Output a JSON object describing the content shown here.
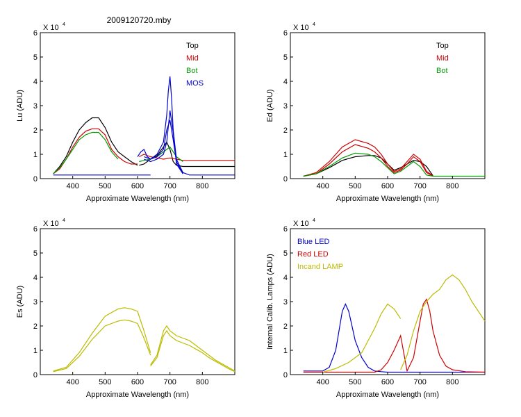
{
  "figure": {
    "title": "2009120720.mby"
  },
  "chart_data": [
    {
      "id": "lu",
      "type": "line",
      "ylabel": "Lu (ADU)",
      "xlabel": "Approximate Wavelength (nm)",
      "multiplier": "X 10",
      "exponent": "4",
      "xlim": [
        300,
        900
      ],
      "ylim": [
        0,
        6
      ],
      "xticks": [
        400,
        500,
        600,
        700,
        800
      ],
      "yticks": [
        0,
        1,
        2,
        3,
        4,
        5,
        6
      ],
      "legend": [
        {
          "label": "Top",
          "color": "#000000"
        },
        {
          "label": "Mid",
          "color": "#cc0000"
        },
        {
          "label": "Bot",
          "color": "#009900"
        },
        {
          "label": "MOS",
          "color": "#0000cc"
        }
      ],
      "series": [
        {
          "name": "Top",
          "color": "#000000",
          "x": [
            340,
            360,
            380,
            400,
            420,
            440,
            460,
            480,
            500,
            520,
            540,
            560,
            580,
            600
          ],
          "y": [
            0.2,
            0.5,
            0.9,
            1.5,
            2.0,
            2.3,
            2.5,
            2.5,
            2.1,
            1.5,
            1.1,
            0.9,
            0.7,
            0.55
          ]
        },
        {
          "name": "Top",
          "color": "#000000",
          "x": [
            605,
            620,
            640,
            660,
            680,
            690,
            700,
            710,
            720,
            740,
            800,
            900
          ],
          "y": [
            0.55,
            0.6,
            0.8,
            0.95,
            1.3,
            1.5,
            1.2,
            0.7,
            0.55,
            0.5,
            0.5,
            0.5
          ]
        },
        {
          "name": "Mid",
          "color": "#cc0000",
          "x": [
            340,
            360,
            380,
            400,
            420,
            440,
            460,
            480,
            500,
            520,
            540,
            560,
            580,
            600
          ],
          "y": [
            0.2,
            0.4,
            0.8,
            1.3,
            1.7,
            1.95,
            2.05,
            2.05,
            1.8,
            1.2,
            0.9,
            0.7,
            0.6,
            0.6
          ]
        },
        {
          "name": "Mid",
          "color": "#cc0000",
          "x": [
            605,
            620,
            640,
            660,
            680,
            700,
            720,
            740,
            800,
            900
          ],
          "y": [
            0.9,
            1.0,
            0.9,
            0.85,
            0.8,
            0.85,
            0.8,
            0.75,
            0.75,
            0.75
          ]
        },
        {
          "name": "Bot",
          "color": "#009900",
          "x": [
            340,
            360,
            380,
            400,
            420,
            440,
            460,
            480,
            500,
            520,
            540
          ],
          "y": [
            0.2,
            0.45,
            0.8,
            1.2,
            1.6,
            1.8,
            1.9,
            1.9,
            1.6,
            1.1,
            0.8
          ]
        },
        {
          "name": "Bot",
          "color": "#009900",
          "x": [
            605,
            620,
            640,
            660,
            680,
            700,
            720,
            740
          ],
          "y": [
            0.7,
            0.75,
            0.8,
            0.9,
            1.1,
            1.3,
            0.9,
            0.7
          ]
        },
        {
          "name": "MOS",
          "color": "#0000cc",
          "x": [
            340,
            600,
            640
          ],
          "y": [
            0.15,
            0.15,
            0.15
          ]
        },
        {
          "name": "MOS",
          "color": "#0000cc",
          "x": [
            600,
            610,
            620,
            630,
            640,
            660,
            680,
            690,
            695,
            700,
            705,
            710,
            720,
            740,
            760,
            800,
            900
          ],
          "y": [
            0.9,
            1.1,
            1.2,
            0.9,
            0.8,
            1.0,
            1.5,
            2.6,
            3.6,
            4.2,
            3.3,
            2.0,
            0.8,
            0.25,
            0.15,
            0.15,
            0.15
          ]
        },
        {
          "name": "MOS",
          "color": "#0000cc",
          "x": [
            620,
            640,
            660,
            680,
            690,
            700,
            710,
            720,
            740
          ],
          "y": [
            0.9,
            0.8,
            0.9,
            1.2,
            2.0,
            2.4,
            1.6,
            0.7,
            0.2
          ]
        },
        {
          "name": "MOS",
          "color": "#0000cc",
          "x": [
            620,
            640,
            660,
            680,
            690,
            700,
            710,
            720,
            740
          ],
          "y": [
            0.8,
            0.7,
            0.8,
            1.0,
            1.5,
            2.8,
            1.9,
            0.6,
            0.2
          ]
        }
      ]
    },
    {
      "id": "ed",
      "type": "line",
      "ylabel": "Ed  (ADU)",
      "xlabel": "Approximate Wavelength (nm)",
      "multiplier": "X 10",
      "exponent": "4",
      "xlim": [
        300,
        900
      ],
      "ylim": [
        0,
        6
      ],
      "xticks": [
        400,
        500,
        600,
        700,
        800
      ],
      "yticks": [
        0,
        1,
        2,
        3,
        4,
        5,
        6
      ],
      "legend": [
        {
          "label": "Top",
          "color": "#000000"
        },
        {
          "label": "Mid",
          "color": "#cc0000"
        },
        {
          "label": "Bot",
          "color": "#009900"
        }
      ],
      "series": [
        {
          "name": "Top",
          "color": "#000000",
          "x": [
            340,
            380,
            420,
            460,
            500,
            540,
            560,
            580,
            600,
            620,
            640,
            660,
            680,
            700,
            720,
            740
          ],
          "y": [
            0.1,
            0.2,
            0.45,
            0.75,
            0.9,
            0.95,
            0.95,
            0.85,
            0.6,
            0.35,
            0.45,
            0.6,
            0.75,
            0.7,
            0.5,
            0.12
          ]
        },
        {
          "name": "Mid",
          "color": "#cc0000",
          "x": [
            340,
            380,
            420,
            460,
            500,
            540,
            560,
            580,
            600,
            620,
            640,
            660,
            680,
            700,
            720,
            740
          ],
          "y": [
            0.1,
            0.25,
            0.7,
            1.3,
            1.6,
            1.45,
            1.3,
            1.0,
            0.6,
            0.3,
            0.4,
            0.7,
            1.0,
            0.8,
            0.3,
            0.12
          ]
        },
        {
          "name": "Mid",
          "color": "#cc0000",
          "x": [
            340,
            380,
            420,
            460,
            500,
            540,
            560,
            580,
            600,
            620,
            640,
            660,
            680,
            700,
            720,
            740
          ],
          "y": [
            0.1,
            0.2,
            0.6,
            1.1,
            1.4,
            1.25,
            1.1,
            0.85,
            0.5,
            0.25,
            0.35,
            0.6,
            0.9,
            0.7,
            0.25,
            0.1
          ]
        },
        {
          "name": "Bot",
          "color": "#009900",
          "x": [
            340,
            380,
            420,
            460,
            500,
            540,
            560,
            580,
            600,
            620,
            640,
            660,
            680,
            700,
            720,
            740,
            800,
            900
          ],
          "y": [
            0.1,
            0.2,
            0.5,
            0.85,
            1.05,
            1.0,
            0.9,
            0.7,
            0.45,
            0.2,
            0.3,
            0.5,
            0.7,
            0.5,
            0.15,
            0.1,
            0.1,
            0.1
          ]
        }
      ]
    },
    {
      "id": "es",
      "type": "line",
      "ylabel": "Es  (ADU)",
      "xlabel": "Approximate Wavelength (nm)",
      "multiplier": "X 10",
      "exponent": "4",
      "xlim": [
        300,
        900
      ],
      "ylim": [
        0,
        6
      ],
      "xticks": [
        400,
        500,
        600,
        700,
        800
      ],
      "yticks": [
        0,
        1,
        2,
        3,
        4,
        5,
        6
      ],
      "legend": [],
      "series": [
        {
          "name": "Es",
          "color": "#bbbb00",
          "x": [
            340,
            380,
            420,
            460,
            500,
            540,
            560,
            580,
            600,
            620,
            640
          ],
          "y": [
            0.15,
            0.3,
            0.9,
            1.7,
            2.4,
            2.7,
            2.75,
            2.7,
            2.6,
            1.8,
            0.9
          ]
        },
        {
          "name": "Es",
          "color": "#bbbb00",
          "x": [
            340,
            380,
            420,
            460,
            500,
            540,
            560,
            580,
            600,
            620,
            640
          ],
          "y": [
            0.12,
            0.25,
            0.75,
            1.45,
            2.0,
            2.2,
            2.25,
            2.2,
            2.1,
            1.5,
            0.8
          ]
        },
        {
          "name": "Es",
          "color": "#bbbb00",
          "x": [
            640,
            660,
            680,
            690,
            700,
            720,
            740,
            760,
            780,
            800,
            820,
            840,
            860,
            880,
            900
          ],
          "y": [
            0.4,
            0.8,
            1.8,
            2.0,
            1.8,
            1.6,
            1.5,
            1.4,
            1.2,
            1.0,
            0.8,
            0.6,
            0.45,
            0.3,
            0.15
          ]
        },
        {
          "name": "Es",
          "color": "#bbbb00",
          "x": [
            640,
            660,
            680,
            690,
            700,
            720,
            740,
            760,
            780,
            800,
            820,
            840,
            860,
            880,
            900
          ],
          "y": [
            0.35,
            0.7,
            1.6,
            1.8,
            1.6,
            1.4,
            1.3,
            1.2,
            1.05,
            0.9,
            0.7,
            0.55,
            0.4,
            0.25,
            0.12
          ]
        }
      ]
    },
    {
      "id": "cal",
      "type": "line",
      "ylabel": "Internal Calib. Lamps (ADU)",
      "xlabel": "Approximate Wavelength (nm)",
      "multiplier": "X 10",
      "exponent": "4",
      "xlim": [
        300,
        900
      ],
      "ylim": [
        0,
        6
      ],
      "xticks": [
        400,
        500,
        600,
        700,
        800
      ],
      "yticks": [
        0,
        1,
        2,
        3,
        4,
        5,
        6
      ],
      "legend": [
        {
          "label": "Blue LED",
          "color": "#0000cc"
        },
        {
          "label": "Red LED",
          "color": "#cc0000"
        },
        {
          "label": "Incand LAMP",
          "color": "#bbbb00"
        }
      ],
      "series": [
        {
          "name": "Blue LED",
          "color": "#0000cc",
          "x": [
            340,
            400,
            420,
            440,
            450,
            460,
            470,
            480,
            490,
            500,
            520,
            540,
            560,
            580,
            600,
            900
          ],
          "y": [
            0.15,
            0.15,
            0.3,
            1.0,
            1.8,
            2.6,
            2.9,
            2.6,
            2.0,
            1.4,
            0.7,
            0.3,
            0.15,
            0.12,
            0.1,
            0.1
          ]
        },
        {
          "name": "Red LED",
          "color": "#cc0000",
          "x": [
            340,
            560,
            580,
            600,
            620,
            640,
            660,
            680,
            700,
            710,
            720,
            730,
            740,
            760,
            780,
            800,
            840,
            900
          ],
          "y": [
            0.1,
            0.1,
            0.2,
            0.5,
            1.0,
            1.6,
            0.15,
            0.7,
            2.2,
            2.9,
            3.1,
            2.6,
            1.8,
            0.8,
            0.35,
            0.2,
            0.12,
            0.1
          ]
        },
        {
          "name": "Incand LAMP",
          "color": "#bbbb00",
          "x": [
            400,
            440,
            480,
            520,
            540,
            560,
            580,
            600,
            620,
            640
          ],
          "y": [
            0.1,
            0.25,
            0.5,
            0.9,
            1.4,
            1.9,
            2.5,
            2.9,
            2.7,
            2.3
          ]
        },
        {
          "name": "Incand LAMP",
          "color": "#bbbb00",
          "x": [
            640,
            660,
            680,
            700,
            720,
            740,
            760,
            780,
            800,
            820,
            840,
            860,
            880,
            900
          ],
          "y": [
            0.2,
            0.8,
            1.8,
            2.6,
            3.0,
            3.3,
            3.5,
            3.9,
            4.1,
            3.9,
            3.5,
            3.0,
            2.6,
            2.2
          ]
        }
      ]
    }
  ]
}
